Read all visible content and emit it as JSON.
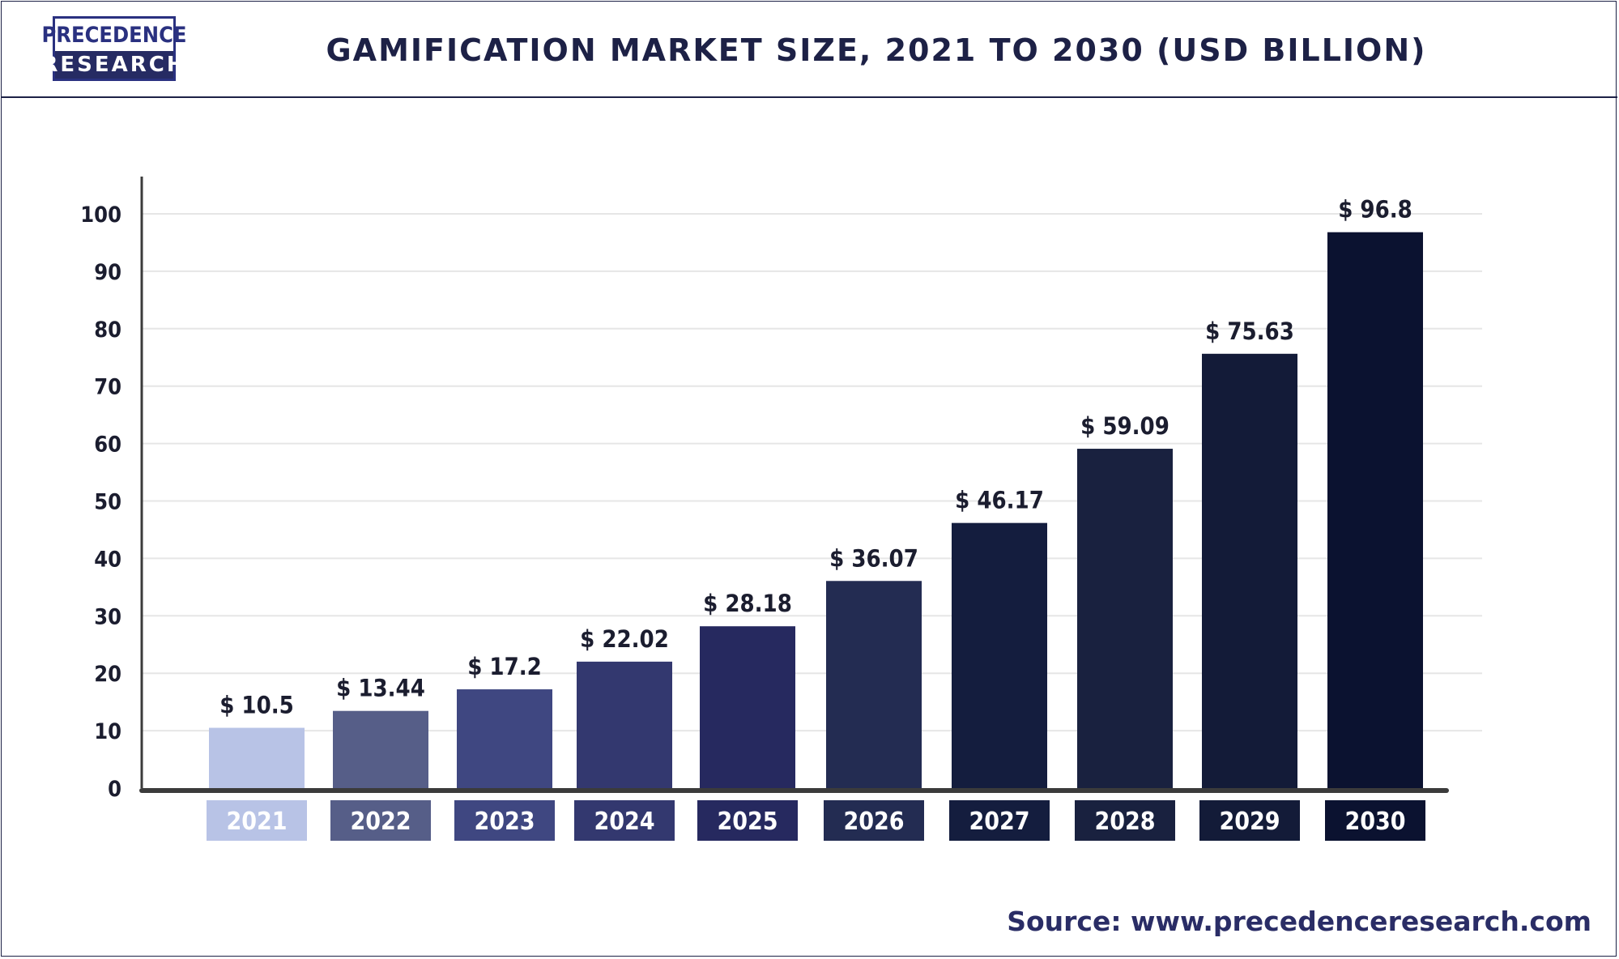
{
  "header": {
    "logo_top": "PRECEDENCE",
    "logo_bottom": "RESEARCH",
    "title": "GAMIFICATION MARKET SIZE, 2021 TO 2030 (USD BILLION)"
  },
  "footer": {
    "source": "Source: www.precedenceresearch.com"
  },
  "colors": {
    "bars": [
      "#b8c3e6",
      "#565e88",
      "#3f4781",
      "#33386f",
      "#26295f",
      "#232c52",
      "#141d3e",
      "#19213f",
      "#131b38",
      "#0b1230"
    ],
    "axis": "#3b3b3b",
    "grid": "#e6e6e6"
  },
  "chart_data": {
    "type": "bar",
    "title": "GAMIFICATION MARKET SIZE, 2021 TO 2030 (USD BILLION)",
    "categories": [
      "2021",
      "2022",
      "2023",
      "2024",
      "2025",
      "2026",
      "2027",
      "2028",
      "2029",
      "2030"
    ],
    "values": [
      10.5,
      13.44,
      17.2,
      22.02,
      28.18,
      36.07,
      46.17,
      59.09,
      75.63,
      96.8
    ],
    "data_labels": [
      "$ 10.5",
      "$ 13.44",
      "$ 17.2",
      "$ 22.02",
      "$ 28.18",
      "$ 36.07",
      "$ 46.17",
      "$ 59.09",
      "$ 75.63",
      "$ 96.8"
    ],
    "y_ticks": [
      "0",
      "10",
      "20",
      "30",
      "40",
      "50",
      "60",
      "70",
      "80",
      "90",
      "100"
    ],
    "ylim": [
      0,
      100
    ],
    "grid": true,
    "legend": "none"
  }
}
